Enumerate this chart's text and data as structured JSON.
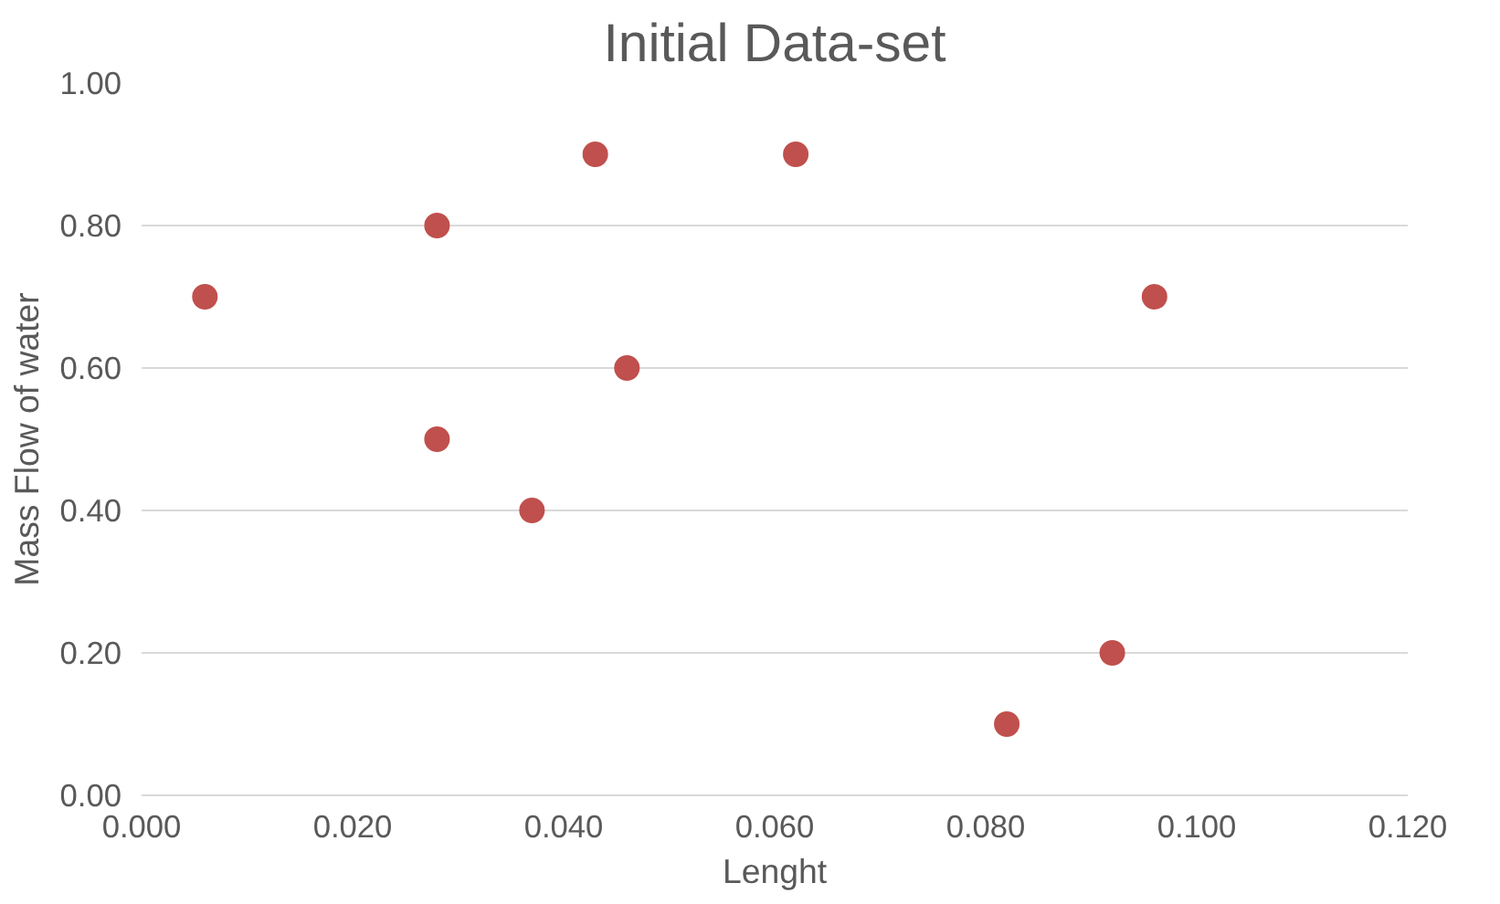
{
  "chart_data": {
    "type": "scatter",
    "title": "Initial Data-set",
    "xlabel": "Lenght",
    "ylabel": "Mass Flow of water",
    "x": [
      0.006,
      0.028,
      0.028,
      0.037,
      0.043,
      0.046,
      0.062,
      0.082,
      0.092,
      0.096
    ],
    "series": [
      {
        "color": "#c0504d",
        "values": [
          0.7,
          0.8,
          0.5,
          0.4,
          0.9,
          0.6,
          0.9,
          0.1,
          0.2,
          0.7
        ]
      }
    ],
    "xlim": [
      0,
      0.12
    ],
    "ylim": [
      0,
      1
    ],
    "xticks": [
      {
        "value": 0,
        "label": "0.000"
      },
      {
        "value": 0.02,
        "label": "0.020"
      },
      {
        "value": 0.04,
        "label": "0.040"
      },
      {
        "value": 0.06,
        "label": "0.060"
      },
      {
        "value": 0.08,
        "label": "0.080"
      },
      {
        "value": 0.1,
        "label": "0.100"
      },
      {
        "value": 0.12,
        "label": "0.120"
      }
    ],
    "yticks": [
      {
        "value": 0,
        "label": "0.00"
      },
      {
        "value": 0.2,
        "label": "0.20"
      },
      {
        "value": 0.4,
        "label": "0.40"
      },
      {
        "value": 0.6,
        "label": "0.60"
      },
      {
        "value": 0.8,
        "label": "0.80"
      },
      {
        "value": 1,
        "label": "1.00"
      }
    ],
    "grid": "y",
    "marker": "circle"
  }
}
